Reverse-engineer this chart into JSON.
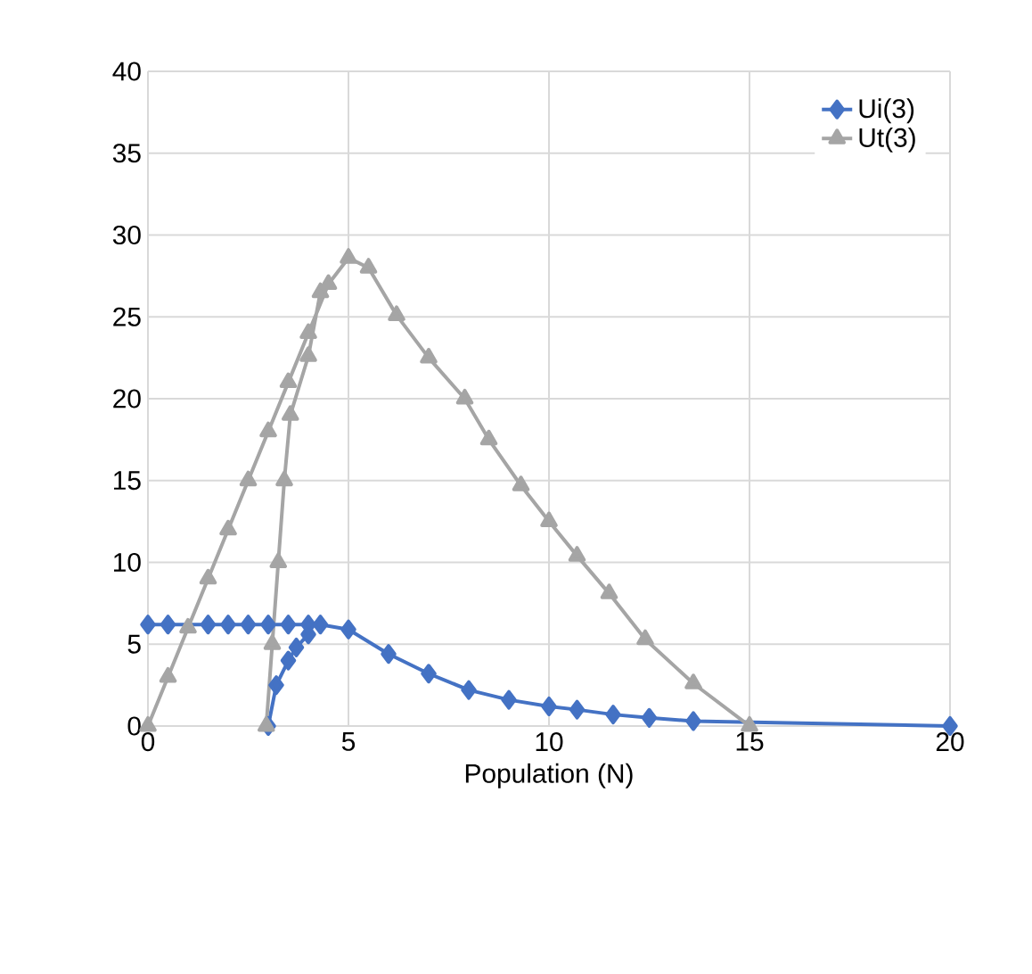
{
  "chart_data": {
    "type": "line",
    "xlabel": "Population (N)",
    "xlim": [
      0,
      20
    ],
    "ylim": [
      0,
      40
    ],
    "xticks": [
      0,
      5,
      10,
      15,
      20
    ],
    "yticks": [
      0,
      5,
      10,
      15,
      20,
      25,
      30,
      35,
      40
    ],
    "grid": true,
    "legend": "top right",
    "line_style": "solid",
    "series": [
      {
        "name": "Ui(3)",
        "color": "#4472c4",
        "marker": "diamond",
        "x": [
          3.0,
          3.2,
          3.5,
          3.7,
          4.0,
          null,
          0,
          0.5,
          1.5,
          2,
          2.5,
          3,
          3.5,
          4,
          4.3,
          5,
          6,
          7,
          8,
          9,
          10,
          10.7,
          11.6,
          12.5,
          13.6,
          20
        ],
        "values": [
          0,
          2.5,
          4.0,
          4.8,
          5.6,
          null,
          6.2,
          6.2,
          6.2,
          6.2,
          6.2,
          6.2,
          6.2,
          6.2,
          6.2,
          5.9,
          4.4,
          3.2,
          2.2,
          1.6,
          1.2,
          1.0,
          0.7,
          0.5,
          0.3,
          0
        ]
      },
      {
        "name": "Ut(3)",
        "color": "#a5a5a5",
        "marker": "triangle",
        "x": [
          2.95,
          3.1,
          3.25,
          3.4,
          3.55,
          4.0,
          4.3,
          null,
          0,
          0.5,
          1,
          1.5,
          2,
          2.5,
          3,
          3.5,
          4,
          4.5,
          5,
          5.5,
          6.2,
          7,
          7.9,
          8.5,
          9.3,
          10,
          10.7,
          11.5,
          12.4,
          13.6,
          15
        ],
        "values": [
          0,
          5,
          10,
          15,
          19,
          22.6,
          26.5,
          null,
          0,
          3,
          6,
          9,
          12,
          15,
          18,
          21,
          24,
          27,
          28.6,
          28,
          25.1,
          22.5,
          20,
          17.5,
          14.7,
          12.5,
          10.4,
          8.1,
          5.3,
          2.6,
          0
        ]
      }
    ]
  }
}
